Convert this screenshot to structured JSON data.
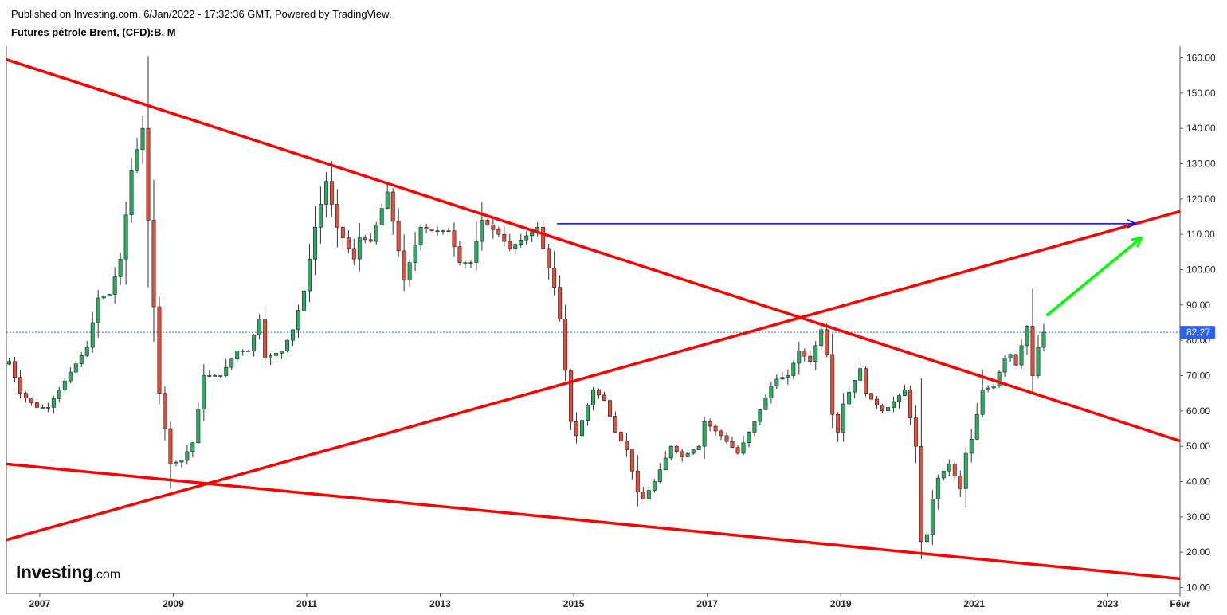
{
  "header": {
    "published": "Published on Investing.com, 6/Jan/2022 - 17:32:36 GMT, Powered by TradingView.",
    "title": "Futures pétrole Brent, (CFD):B, M"
  },
  "logo": {
    "main": "Investing",
    "suffix": ".com"
  },
  "colors": {
    "up": "#27ae60",
    "down": "#e74c3c",
    "trend": "#ff0000",
    "blue_arrow": "#0000ff",
    "green_arrow": "#00ff00",
    "price_badge": "#2962ff",
    "price_line": "#2962ff"
  },
  "chart_data": {
    "type": "candlestick",
    "title": "Futures pétrole Brent, (CFD):B, M",
    "timeframe": "M",
    "xlabel": "",
    "ylabel": "",
    "ylim": [
      10,
      160
    ],
    "xlim": [
      "2006-07",
      "2024-02"
    ],
    "grid": false,
    "y_ticks": [
      "10.00",
      "20.00",
      "30.00",
      "40.00",
      "50.00",
      "60.00",
      "70.00",
      "80.00",
      "90.00",
      "100.00",
      "110.00",
      "120.00",
      "130.00",
      "140.00",
      "150.00",
      "160.00"
    ],
    "x_ticks": [
      {
        "label": "2007",
        "date": "2007-01"
      },
      {
        "label": "2009",
        "date": "2009-01"
      },
      {
        "label": "2011",
        "date": "2011-01"
      },
      {
        "label": "2013",
        "date": "2013-01"
      },
      {
        "label": "2015",
        "date": "2015-01"
      },
      {
        "label": "2017",
        "date": "2017-01"
      },
      {
        "label": "2019",
        "date": "2019-01"
      },
      {
        "label": "2021",
        "date": "2021-01"
      },
      {
        "label": "2023",
        "date": "2023-01"
      },
      {
        "label": "Févr",
        "date": "2024-02"
      }
    ],
    "last_price": 82.27,
    "last_price_label": "82.27",
    "close_anchors": [
      [
        "2006-07",
        74
      ],
      [
        "2006-09",
        65
      ],
      [
        "2006-12",
        61
      ],
      [
        "2007-02",
        61
      ],
      [
        "2007-06",
        71
      ],
      [
        "2007-09",
        78
      ],
      [
        "2007-11",
        92
      ],
      [
        "2008-01",
        93
      ],
      [
        "2008-03",
        103
      ],
      [
        "2008-05",
        128
      ],
      [
        "2008-07",
        140
      ],
      [
        "2008-08",
        114
      ],
      [
        "2008-10",
        65
      ],
      [
        "2008-12",
        45
      ],
      [
        "2009-02",
        46
      ],
      [
        "2009-04",
        51
      ],
      [
        "2009-06",
        70
      ],
      [
        "2009-09",
        70
      ],
      [
        "2009-12",
        77
      ],
      [
        "2010-02",
        77
      ],
      [
        "2010-04",
        86
      ],
      [
        "2010-05",
        75
      ],
      [
        "2010-08",
        77
      ],
      [
        "2010-10",
        83
      ],
      [
        "2010-12",
        94
      ],
      [
        "2011-02",
        112
      ],
      [
        "2011-04",
        125
      ],
      [
        "2011-06",
        112
      ],
      [
        "2011-09",
        103
      ],
      [
        "2011-10",
        109
      ],
      [
        "2011-12",
        108
      ],
      [
        "2012-03",
        122
      ],
      [
        "2012-06",
        97
      ],
      [
        "2012-09",
        112
      ],
      [
        "2012-11",
        111
      ],
      [
        "2013-02",
        111
      ],
      [
        "2013-04",
        102
      ],
      [
        "2013-06",
        102
      ],
      [
        "2013-08",
        114
      ],
      [
        "2013-11",
        110
      ],
      [
        "2014-01",
        106
      ],
      [
        "2014-06",
        112
      ],
      [
        "2014-07",
        106
      ],
      [
        "2014-09",
        95
      ],
      [
        "2014-10",
        86
      ],
      [
        "2014-12",
        57
      ],
      [
        "2015-01",
        53
      ],
      [
        "2015-04",
        66
      ],
      [
        "2015-06",
        63
      ],
      [
        "2015-08",
        54
      ],
      [
        "2015-10",
        49
      ],
      [
        "2015-12",
        37
      ],
      [
        "2016-01",
        35
      ],
      [
        "2016-03",
        40
      ],
      [
        "2016-06",
        50
      ],
      [
        "2016-08",
        47
      ],
      [
        "2016-11",
        50
      ],
      [
        "2016-12",
        57
      ],
      [
        "2017-03",
        53
      ],
      [
        "2017-06",
        48
      ],
      [
        "2017-09",
        57
      ],
      [
        "2017-12",
        67
      ],
      [
        "2018-01",
        69
      ],
      [
        "2018-03",
        70
      ],
      [
        "2018-05",
        77
      ],
      [
        "2018-07",
        74
      ],
      [
        "2018-09",
        83
      ],
      [
        "2018-10",
        76
      ],
      [
        "2018-11",
        59
      ],
      [
        "2018-12",
        54
      ],
      [
        "2019-01",
        62
      ],
      [
        "2019-04",
        72
      ],
      [
        "2019-05",
        65
      ],
      [
        "2019-08",
        60
      ],
      [
        "2019-09",
        61
      ],
      [
        "2019-12",
        66
      ],
      [
        "2020-01",
        58
      ],
      [
        "2020-02",
        50
      ],
      [
        "2020-03",
        23
      ],
      [
        "2020-04",
        25
      ],
      [
        "2020-05",
        35
      ],
      [
        "2020-06",
        41
      ],
      [
        "2020-08",
        45
      ],
      [
        "2020-10",
        38
      ],
      [
        "2020-11",
        48
      ],
      [
        "2020-12",
        52
      ],
      [
        "2021-02",
        66
      ],
      [
        "2021-04",
        67
      ],
      [
        "2021-06",
        75
      ],
      [
        "2021-07",
        76
      ],
      [
        "2021-08",
        73
      ],
      [
        "2021-10",
        84
      ],
      [
        "2021-11",
        70
      ],
      [
        "2021-12",
        78
      ],
      [
        "2022-01",
        82.27
      ]
    ],
    "drawings": [
      {
        "type": "trendline",
        "color": "#ff0000",
        "start": [
          "2006-07",
          159.5
        ],
        "end": [
          "2024-02",
          51.5
        ]
      },
      {
        "type": "trendline",
        "color": "#ff0000",
        "start": [
          "2006-07",
          23.5
        ],
        "end": [
          "2024-02",
          116.5
        ]
      },
      {
        "type": "trendline",
        "color": "#ff0000",
        "start": [
          "2006-07",
          45
        ],
        "end": [
          "2024-02",
          12.5
        ]
      },
      {
        "type": "arrow",
        "color": "#0000ff",
        "start": [
          "2014-10",
          113
        ],
        "end": [
          "2023-06",
          113
        ]
      },
      {
        "type": "arrow",
        "color": "#00ff00",
        "start": [
          "2022-02",
          87
        ],
        "end": [
          "2023-07",
          109
        ]
      }
    ]
  }
}
